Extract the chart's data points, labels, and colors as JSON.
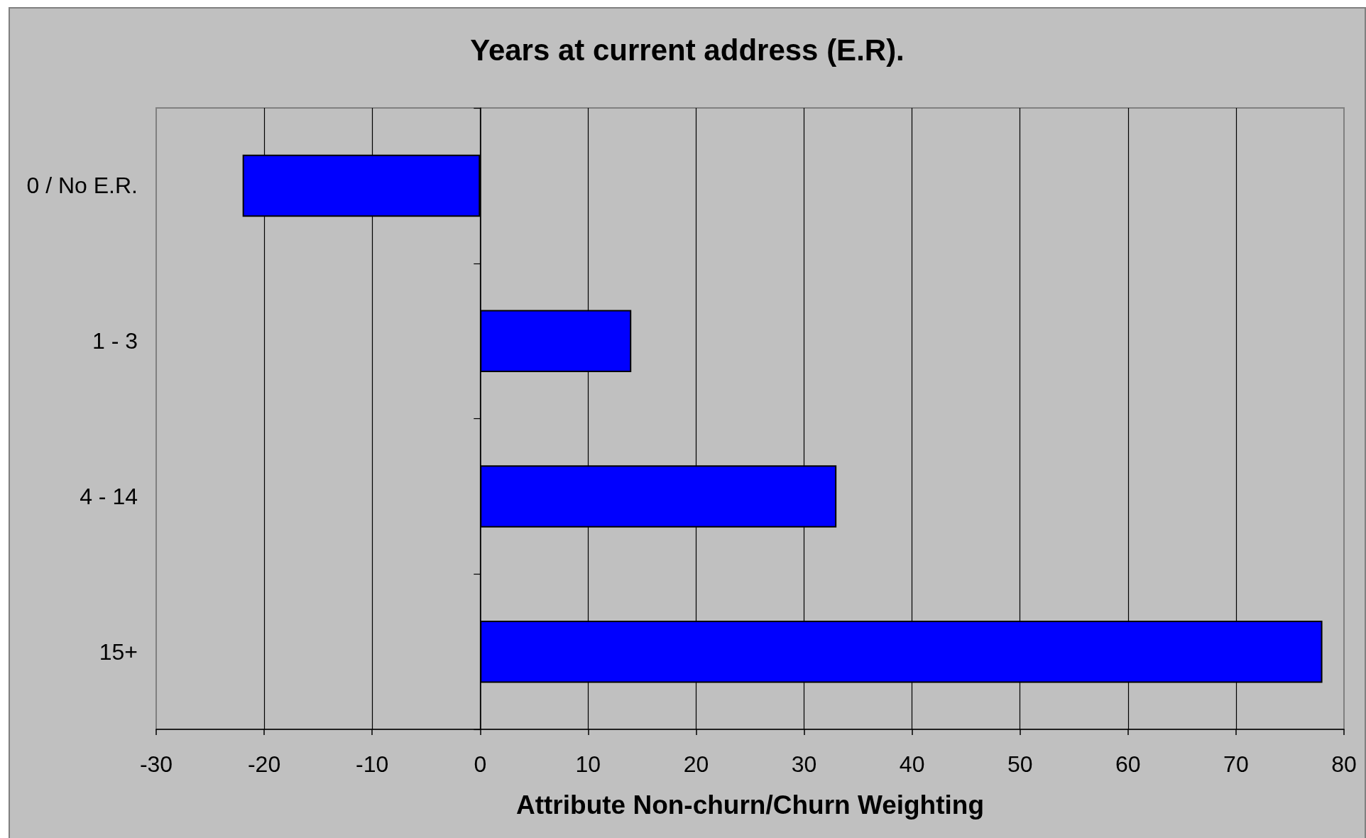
{
  "chart_data": {
    "type": "bar",
    "orientation": "horizontal",
    "title": "Years at current address (E.R).",
    "xlabel": "Attribute Non-churn/Churn Weighting",
    "categories": [
      "0 / No E.R.",
      "1 - 3",
      "4 - 14",
      "15+"
    ],
    "values": [
      -22,
      14,
      33,
      78
    ],
    "color": "#0000ff",
    "xlim": [
      -30,
      80
    ],
    "xticks": [
      -30,
      -20,
      -10,
      0,
      10,
      20,
      30,
      40,
      50,
      60,
      70,
      80
    ],
    "grid": "x"
  }
}
